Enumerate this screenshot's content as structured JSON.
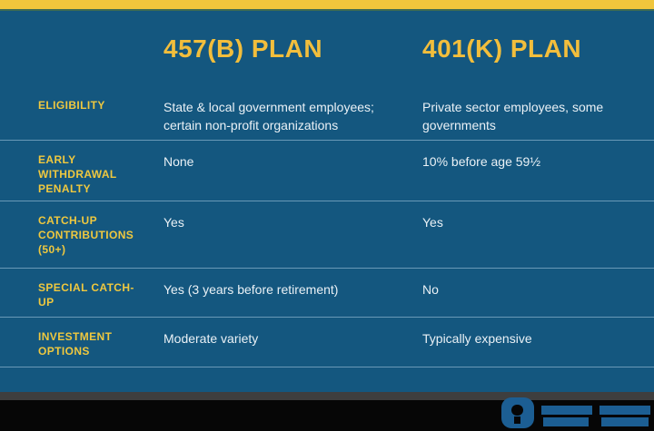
{
  "colors": {
    "top_bar_yellow": "#F0C63C",
    "background_blue": "#14577F",
    "header_yellow": "#F2BE3C",
    "label_yellow": "#EFC83F",
    "value_white": "#EAF1F6",
    "divider_blue": "#9CC3DC",
    "footer_gray": "#3E3E3E",
    "footer_black": "#060606",
    "logo_blue": "#1C5E93"
  },
  "chart_data": {
    "type": "table",
    "title": "457(B) PLAN vs 401(K) PLAN comparison",
    "columns": [
      "",
      "457(B) PLAN",
      "401(K) PLAN"
    ],
    "rows": [
      {
        "label": "ELIGIBILITY",
        "plan_457b": "State & local government employees; certain non-profit organizations",
        "plan_401k": "Private sector employees, some governments"
      },
      {
        "label": "EARLY WITHDRAWAL PENALTY",
        "plan_457b": "None",
        "plan_401k": "10% before age 59½"
      },
      {
        "label": "CATCH-UP CONTRIBUTIONS (50+)",
        "plan_457b": "Yes",
        "plan_401k": "Yes"
      },
      {
        "label": "SPECIAL CATCH-UP",
        "plan_457b": "Yes (3 years before retirement)",
        "plan_401k": "No"
      },
      {
        "label": "INVESTMENT OPTIONS",
        "plan_457b": "Moderate variety",
        "plan_401k": "Typically expensive"
      }
    ]
  }
}
